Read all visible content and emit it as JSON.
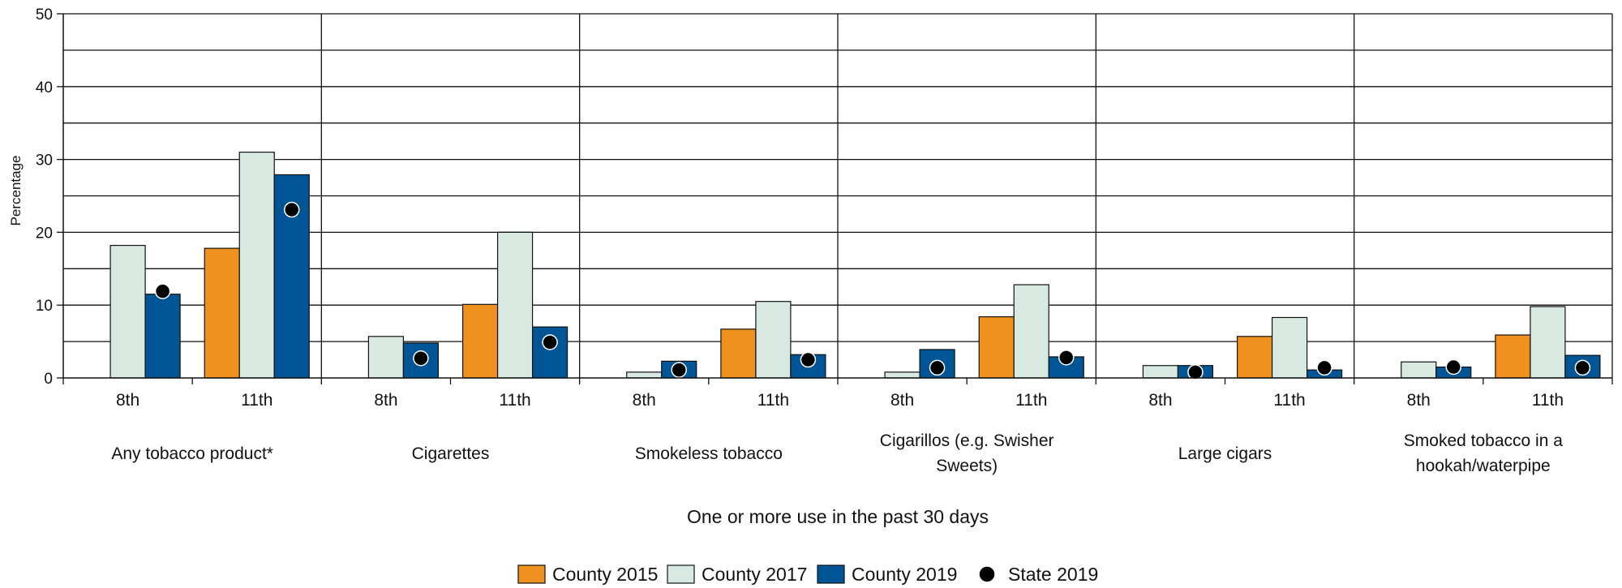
{
  "chart_data": {
    "type": "bar",
    "title": "",
    "ylabel": "Percentage",
    "xlabel": "One or more use in the past 30 days",
    "ylim": [
      0,
      50
    ],
    "yticks": [
      0,
      10,
      20,
      30,
      40,
      50
    ],
    "grid": true,
    "legend_position": "bottom",
    "grades": [
      "8th",
      "11th"
    ],
    "groups": [
      {
        "label": "Any tobacco product*",
        "label_lines": [
          "Any tobacco product*"
        ]
      },
      {
        "label": "Cigarettes",
        "label_lines": [
          "Cigarettes"
        ]
      },
      {
        "label": "Smokeless tobacco",
        "label_lines": [
          "Smokeless tobacco"
        ]
      },
      {
        "label": "Cigarillos (e.g. Swisher Sweets)",
        "label_lines": [
          "Cigarillos (e.g. Swisher",
          "Sweets)"
        ]
      },
      {
        "label": "Large cigars",
        "label_lines": [
          "Large cigars"
        ]
      },
      {
        "label": "Smoked tobacco in a hookah/waterpipe",
        "label_lines": [
          "Smoked tobacco in a",
          "hookah/waterpipe"
        ]
      }
    ],
    "series": [
      {
        "name": "County 2015",
        "kind": "bar",
        "color": "#f0901e",
        "values": [
          null,
          17.8,
          null,
          10.1,
          null,
          6.7,
          null,
          8.4,
          null,
          5.7,
          null,
          5.9
        ]
      },
      {
        "name": "County 2017",
        "kind": "bar",
        "color": "#d7e9e0",
        "values": [
          18.2,
          31.0,
          5.7,
          20.0,
          0.8,
          10.5,
          0.8,
          12.8,
          1.7,
          8.3,
          2.2,
          9.8
        ]
      },
      {
        "name": "County 2019",
        "kind": "bar",
        "color": "#005596",
        "values": [
          11.5,
          27.9,
          4.8,
          7.0,
          2.3,
          3.2,
          3.9,
          2.9,
          1.7,
          1.1,
          1.5,
          3.1
        ]
      },
      {
        "name": "State 2019",
        "kind": "point",
        "color": "#000000",
        "values": [
          11.9,
          23.1,
          2.7,
          4.9,
          1.1,
          2.5,
          1.4,
          2.8,
          0.8,
          1.4,
          1.5,
          1.4
        ]
      }
    ]
  }
}
